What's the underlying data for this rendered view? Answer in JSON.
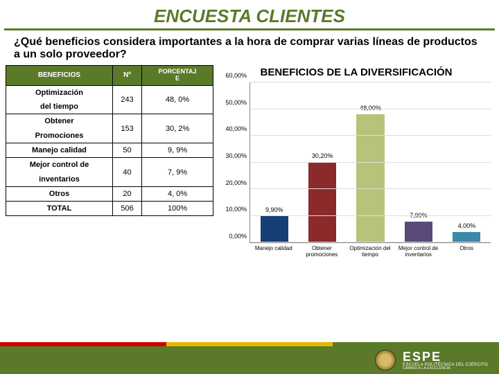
{
  "title": "ENCUESTA CLIENTES",
  "question": "¿Qué beneficios considera importantes  a la hora de comprar varias líneas de productos a un solo proveedor?",
  "table": {
    "headers": {
      "c0": "BENEFICIOS",
      "c1": "Nº",
      "c2_line1": "PORCENTAJ",
      "c2_line2": "E"
    },
    "rows": [
      {
        "label_l1": "Optimización",
        "label_l2": "del tiempo",
        "n": "243",
        "pct": "48, 0%"
      },
      {
        "label_l1": "Obtener",
        "label_l2": "Promociones",
        "n": "153",
        "pct": "30, 2%"
      },
      {
        "label_l1": "Manejo calidad",
        "label_l2": "",
        "n": "50",
        "pct": "9, 9%"
      },
      {
        "label_l1": "Mejor control de",
        "label_l2": "inventarios",
        "n": "40",
        "pct": "7, 9%"
      },
      {
        "label_l1": "Otros",
        "label_l2": "",
        "n": "20",
        "pct": "4, 0%"
      },
      {
        "label_l1": "TOTAL",
        "label_l2": "",
        "n": "506",
        "pct": "100%"
      }
    ]
  },
  "chart": {
    "title": "BENEFICIOS DE LA DIVERSIFICACIÓN",
    "type": "bar",
    "ymax": 60,
    "ytick_step": 10,
    "yticks": [
      "0,00%",
      "10,00%",
      "20,00%",
      "30,00%",
      "40,00%",
      "50,00%",
      "60,00%"
    ],
    "grid_color": "#dddddd",
    "axis_color": "#888888",
    "bg": "#ffffff",
    "series": [
      {
        "xlabel": "Manejo calidad",
        "value": 9.9,
        "label": "9,90%",
        "color": "#163f75"
      },
      {
        "xlabel": "Obtener promociones",
        "value": 30.2,
        "label": "30,20%",
        "color": "#8a2a2a"
      },
      {
        "xlabel": "Optimización del tiempo",
        "value": 48.0,
        "label": "48,00%",
        "color": "#b6c47a"
      },
      {
        "xlabel": "Mejor control de inventarios",
        "value": 7.9,
        "label": "7,90%",
        "color": "#5a4a7a"
      },
      {
        "xlabel": "Otros",
        "value": 4.0,
        "label": "4,00%",
        "color": "#3a8aa8"
      }
    ]
  },
  "footer": {
    "brand": "ESPE",
    "sub": "ESCUELA POLITÉCNICA DEL EJÉRCITO",
    "motto": "CAMINO A LA EXCELENCIA"
  },
  "colors": {
    "brand_green": "#5a7a2a",
    "stripe_red": "#c00000",
    "stripe_yellow": "#e6b800"
  }
}
